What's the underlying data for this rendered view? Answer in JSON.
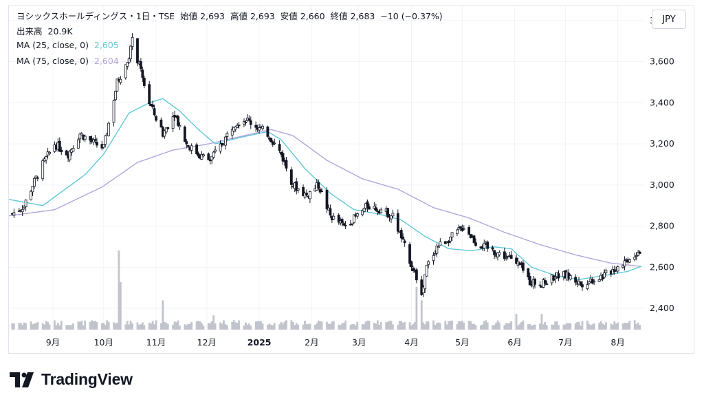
{
  "legend": {
    "symbol": "ヨシックスホールディングス・1日・TSE",
    "open_label": "始値",
    "open": "2,693",
    "high_label": "高値",
    "high": "2,693",
    "low_label": "安値",
    "low": "2,660",
    "close_label": "終値",
    "close": "2,683",
    "change": "−10 (−0.37%)",
    "volume_label": "出来高",
    "volume": "20.9K",
    "ma25_label": "MA (25, close, 0)",
    "ma25_value": "2,605",
    "ma75_label": "MA (75, close, 0)",
    "ma75_value": "2,604"
  },
  "currency": "JPY",
  "logo_text": "TradingView",
  "colors": {
    "up": "#131722",
    "down": "#131722",
    "ma25": "#5ec8d8",
    "ma75": "#b3a4dc",
    "volume": "#c1c4cc",
    "grid": "#f0f3fa"
  },
  "chart_data": {
    "type": "candlestick",
    "y_ticks": [
      "3,800",
      "3,600",
      "3,400",
      "3,200",
      "3,000",
      "2,800",
      "2,600",
      "2,400"
    ],
    "y_tick_values": [
      3800,
      3600,
      3400,
      3200,
      3000,
      2800,
      2600,
      2400
    ],
    "ylim": [
      2330,
      3870
    ],
    "x_ticks": [
      {
        "label": "9月",
        "date": "2024-09-01"
      },
      {
        "label": "10月",
        "date": "2024-10-01"
      },
      {
        "label": "11月",
        "date": "2024-11-01"
      },
      {
        "label": "12月",
        "date": "2024-12-01"
      },
      {
        "label": "2025",
        "date": "2025-01-01",
        "bold": true
      },
      {
        "label": "2月",
        "date": "2025-02-01"
      },
      {
        "label": "3月",
        "date": "2025-03-01"
      },
      {
        "label": "4月",
        "date": "2025-04-01"
      },
      {
        "label": "5月",
        "date": "2025-05-01"
      },
      {
        "label": "6月",
        "date": "2025-06-01"
      },
      {
        "label": "7月",
        "date": "2025-07-01"
      },
      {
        "label": "8月",
        "date": "2025-08-01"
      }
    ],
    "x_range": [
      "2024-08-06",
      "2025-08-17"
    ],
    "close_path": [
      [
        "2024-08-08",
        2860
      ],
      [
        "2024-08-15",
        2900
      ],
      [
        "2024-08-20",
        3000
      ],
      [
        "2024-08-26",
        3100
      ],
      [
        "2024-09-02",
        3200
      ],
      [
        "2024-09-10",
        3150
      ],
      [
        "2024-09-17",
        3250
      ],
      [
        "2024-09-26",
        3200
      ],
      [
        "2024-10-01",
        3180
      ],
      [
        "2024-10-04",
        3300
      ],
      [
        "2024-10-09",
        3500
      ],
      [
        "2024-10-15",
        3600
      ],
      [
        "2024-10-18",
        3700
      ],
      [
        "2024-10-23",
        3550
      ],
      [
        "2024-10-28",
        3400
      ],
      [
        "2024-11-05",
        3250
      ],
      [
        "2024-11-12",
        3350
      ],
      [
        "2024-11-19",
        3200
      ],
      [
        "2024-11-26",
        3150
      ],
      [
        "2024-12-03",
        3120
      ],
      [
        "2024-12-10",
        3200
      ],
      [
        "2024-12-17",
        3300
      ],
      [
        "2024-12-24",
        3320
      ],
      [
        "2025-01-06",
        3250
      ],
      [
        "2025-01-14",
        3150
      ],
      [
        "2025-01-21",
        3000
      ],
      [
        "2025-01-29",
        2950
      ],
      [
        "2025-02-05",
        3000
      ],
      [
        "2025-02-12",
        2850
      ],
      [
        "2025-02-20",
        2800
      ],
      [
        "2025-02-28",
        2850
      ],
      [
        "2025-03-06",
        2900
      ],
      [
        "2025-03-14",
        2880
      ],
      [
        "2025-03-21",
        2850
      ],
      [
        "2025-03-28",
        2700
      ],
      [
        "2025-04-04",
        2550
      ],
      [
        "2025-04-07",
        2450
      ],
      [
        "2025-04-10",
        2600
      ],
      [
        "2025-04-16",
        2700
      ],
      [
        "2025-04-25",
        2750
      ],
      [
        "2025-05-02",
        2800
      ],
      [
        "2025-05-09",
        2720
      ],
      [
        "2025-05-19",
        2680
      ],
      [
        "2025-05-27",
        2650
      ],
      [
        "2025-06-03",
        2620
      ],
      [
        "2025-06-10",
        2530
      ],
      [
        "2025-06-18",
        2520
      ],
      [
        "2025-06-25",
        2560
      ],
      [
        "2025-07-02",
        2560
      ],
      [
        "2025-07-10",
        2520
      ],
      [
        "2025-07-17",
        2540
      ],
      [
        "2025-07-24",
        2560
      ],
      [
        "2025-07-31",
        2600
      ],
      [
        "2025-08-07",
        2640
      ],
      [
        "2025-08-14",
        2683
      ]
    ],
    "ma25_path": [
      [
        "2024-08-06",
        2930
      ],
      [
        "2024-08-26",
        2900
      ],
      [
        "2024-09-20",
        3050
      ],
      [
        "2024-10-01",
        3150
      ],
      [
        "2024-10-16",
        3350
      ],
      [
        "2024-10-28",
        3400
      ],
      [
        "2024-11-05",
        3420
      ],
      [
        "2024-11-15",
        3360
      ],
      [
        "2024-11-26",
        3270
      ],
      [
        "2024-12-06",
        3200
      ],
      [
        "2024-12-20",
        3230
      ],
      [
        "2025-01-06",
        3260
      ],
      [
        "2025-01-14",
        3220
      ],
      [
        "2025-01-28",
        3080
      ],
      [
        "2025-02-12",
        2960
      ],
      [
        "2025-02-26",
        2880
      ],
      [
        "2025-03-12",
        2860
      ],
      [
        "2025-03-26",
        2830
      ],
      [
        "2025-04-09",
        2750
      ],
      [
        "2025-04-23",
        2690
      ],
      [
        "2025-05-07",
        2680
      ],
      [
        "2025-05-19",
        2700
      ],
      [
        "2025-05-30",
        2690
      ],
      [
        "2025-06-11",
        2600
      ],
      [
        "2025-06-25",
        2560
      ],
      [
        "2025-07-09",
        2540
      ],
      [
        "2025-07-24",
        2560
      ],
      [
        "2025-08-07",
        2580
      ],
      [
        "2025-08-15",
        2605
      ]
    ],
    "ma75_path": [
      [
        "2024-08-06",
        2850
      ],
      [
        "2024-09-02",
        2880
      ],
      [
        "2024-09-30",
        2990
      ],
      [
        "2024-10-21",
        3110
      ],
      [
        "2024-11-11",
        3170
      ],
      [
        "2024-12-02",
        3200
      ],
      [
        "2024-12-23",
        3240
      ],
      [
        "2025-01-08",
        3270
      ],
      [
        "2025-01-21",
        3240
      ],
      [
        "2025-02-10",
        3120
      ],
      [
        "2025-03-03",
        3030
      ],
      [
        "2025-03-24",
        2980
      ],
      [
        "2025-04-14",
        2890
      ],
      [
        "2025-05-05",
        2840
      ],
      [
        "2025-05-26",
        2770
      ],
      [
        "2025-06-16",
        2710
      ],
      [
        "2025-07-07",
        2660
      ],
      [
        "2025-07-28",
        2620
      ],
      [
        "2025-08-15",
        2604
      ]
    ],
    "volume_spikes": [
      {
        "date": "2024-10-10",
        "level": 1.0
      },
      {
        "date": "2024-10-11",
        "level": 0.6
      },
      {
        "date": "2024-11-05",
        "level": 0.37
      },
      {
        "date": "2024-12-05",
        "level": 0.18
      },
      {
        "date": "2025-04-04",
        "level": 0.54
      },
      {
        "date": "2025-04-07",
        "level": 0.37
      },
      {
        "date": "2025-06-02",
        "level": 0.2
      },
      {
        "date": "2025-06-17",
        "level": 0.2
      }
    ]
  }
}
